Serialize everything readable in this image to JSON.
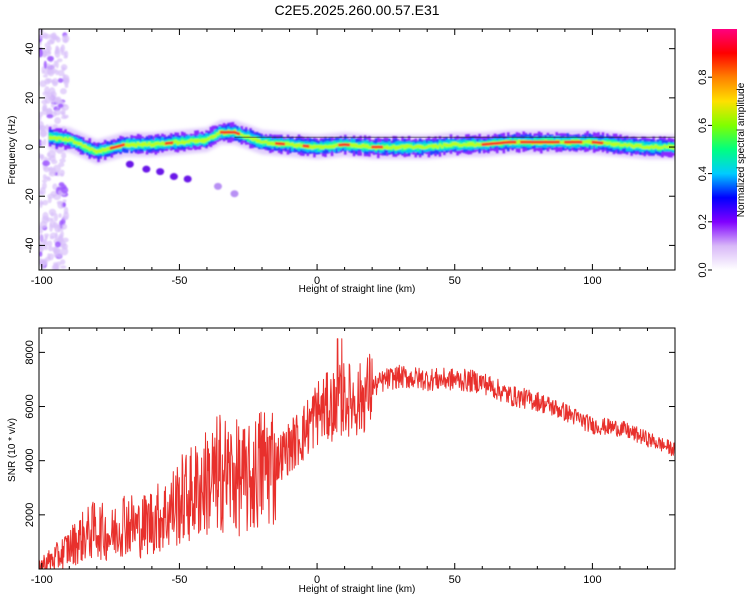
{
  "figure": {
    "title": "C2E5.2025.260.00.57.E31"
  },
  "chart_data": [
    {
      "type": "heatmap",
      "title": "C2E5.2025.260.00.57.E31",
      "xlabel": "Height of straight line (km)",
      "ylabel": "Frequency (Hz)",
      "xlim": [
        -101,
        130
      ],
      "ylim": [
        -50,
        48
      ],
      "xticks": [
        -100,
        -50,
        0,
        50,
        100
      ],
      "yticks": [
        -40,
        -20,
        0,
        20,
        40
      ],
      "grid": false,
      "colorbar": {
        "label": "Normalized spectral amplitude",
        "range": [
          0,
          1
        ],
        "ticks": [
          "0.0",
          "0.2",
          "0.4",
          "0.6",
          "0.8"
        ],
        "colormap": [
          "#ffffff",
          "#d8b8f8",
          "#8000ff",
          "#0000ff",
          "#00ccff",
          "#00ff80",
          "#80ff00",
          "#ffe000",
          "#ff8000",
          "#ff0000",
          "#ff0080"
        ]
      },
      "ridge": {
        "x": [
          -98,
          -90,
          -80,
          -70,
          -60,
          -50,
          -40,
          -35,
          -30,
          -25,
          -20,
          -10,
          0,
          10,
          20,
          30,
          40,
          50,
          60,
          70,
          80,
          90,
          100,
          110,
          120,
          130
        ],
        "freq": [
          4,
          3,
          -2,
          1,
          1,
          2,
          3,
          6,
          6,
          4,
          2,
          1,
          0,
          1,
          0,
          0,
          0,
          1,
          1,
          2,
          2,
          2,
          2,
          1,
          0,
          0
        ]
      },
      "scatter_blobs": [
        {
          "x": -68,
          "freq": -7
        },
        {
          "x": -62,
          "freq": -9
        },
        {
          "x": -57,
          "freq": -10
        },
        {
          "x": -52,
          "freq": -12
        },
        {
          "x": -47,
          "freq": -13
        },
        {
          "x": -36,
          "freq": -16
        },
        {
          "x": -30,
          "freq": -19
        }
      ]
    },
    {
      "type": "line",
      "xlabel": "Height of straight line (km)",
      "ylabel": "SNR (10 * v/v)",
      "xlim": [
        -101,
        130
      ],
      "ylim": [
        0,
        8900
      ],
      "xticks": [
        -100,
        -50,
        0,
        50,
        100
      ],
      "yticks": [
        2000,
        4000,
        6000,
        8000
      ],
      "grid": false,
      "series": [
        {
          "color": "#e8302c",
          "x": [
            -101,
            -95,
            -90,
            -85,
            -80,
            -75,
            -70,
            -65,
            -60,
            -55,
            -50,
            -45,
            -40,
            -35,
            -30,
            -25,
            -20,
            -15,
            -10,
            -5,
            0,
            5,
            10,
            15,
            20,
            25,
            30,
            40,
            50,
            60,
            70,
            80,
            90,
            100,
            110,
            120,
            130
          ],
          "y": [
            100,
            400,
            800,
            1200,
            1500,
            1200,
            1800,
            1500,
            1800,
            2000,
            2500,
            2800,
            3200,
            3600,
            3400,
            3200,
            3800,
            4000,
            4500,
            5000,
            5800,
            6000,
            6300,
            6200,
            6700,
            7000,
            7100,
            7000,
            7000,
            6900,
            6400,
            6200,
            5800,
            5300,
            5200,
            4800,
            4400
          ]
        }
      ]
    }
  ]
}
